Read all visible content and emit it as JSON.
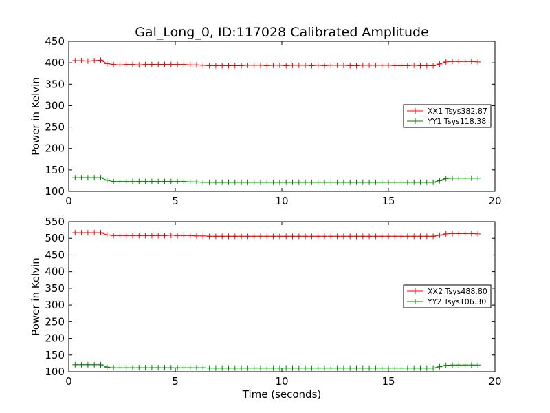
{
  "chart_data": {
    "type": "line",
    "title": "Gal_Long_0, ID:117028 Calibrated Amplitude",
    "xlabel": "Time (seconds)",
    "x": [
      0.3,
      0.6,
      0.9,
      1.2,
      1.5,
      1.8,
      2.1,
      2.4,
      2.7,
      3.0,
      3.3,
      3.6,
      3.9,
      4.2,
      4.5,
      4.8,
      5.1,
      5.4,
      5.7,
      6.0,
      6.3,
      6.6,
      6.9,
      7.2,
      7.5,
      7.8,
      8.1,
      8.4,
      8.7,
      9.0,
      9.3,
      9.6,
      9.9,
      10.2,
      10.5,
      10.8,
      11.1,
      11.4,
      11.7,
      12.0,
      12.3,
      12.6,
      12.9,
      13.2,
      13.5,
      13.8,
      14.1,
      14.4,
      14.7,
      15.0,
      15.3,
      15.6,
      15.9,
      16.2,
      16.5,
      16.8,
      17.1,
      17.4,
      17.7,
      18.0,
      18.3,
      18.6,
      18.9,
      19.2
    ],
    "panels": [
      {
        "ylabel": "Power in Kelvin",
        "xlim": [
          0,
          20
        ],
        "ylim": [
          100,
          450
        ],
        "xticks": [
          "0",
          "5",
          "10",
          "15",
          "20"
        ],
        "yticks": [
          "100",
          "150",
          "200",
          "250",
          "300",
          "350",
          "400",
          "450"
        ],
        "legend_position": "center-right",
        "series": [
          {
            "name": "XX1 Tsys382.87",
            "color": "#ff0000",
            "values": [
              405,
              405,
              404,
              405,
              406,
              398,
              396,
              395,
              396,
              396,
              395,
              396,
              396,
              396,
              396,
              396,
              396,
              396,
              395,
              395,
              394,
              393,
              393,
              393,
              393,
              393,
              393,
              394,
              394,
              394,
              393,
              394,
              394,
              393,
              394,
              394,
              394,
              393,
              394,
              393,
              394,
              394,
              394,
              393,
              393,
              394,
              394,
              394,
              394,
              394,
              393,
              393,
              393,
              394,
              393,
              393,
              393,
              397,
              402,
              403,
              403,
              403,
              403,
              402
            ]
          },
          {
            "name": "YY1 Tsys118.38",
            "color": "#008000",
            "values": [
              132,
              132,
              132,
              132,
              132,
              126,
              123,
              123,
              123,
              123,
              123,
              123,
              123,
              123,
              123,
              123,
              123,
              123,
              122,
              122,
              121,
              121,
              121,
              121,
              121,
              121,
              121,
              121,
              121,
              121,
              121,
              121,
              121,
              121,
              121,
              121,
              121,
              121,
              121,
              121,
              121,
              121,
              121,
              121,
              121,
              121,
              121,
              121,
              121,
              121,
              121,
              121,
              121,
              121,
              121,
              121,
              121,
              125,
              130,
              131,
              131,
              131,
              131,
              131
            ]
          }
        ]
      },
      {
        "ylabel": "Power in Kelvin",
        "xlim": [
          0,
          20
        ],
        "ylim": [
          100,
          550
        ],
        "xticks": [
          "0",
          "5",
          "10",
          "15",
          "20"
        ],
        "yticks": [
          "100",
          "150",
          "200",
          "250",
          "300",
          "350",
          "400",
          "450",
          "500",
          "550"
        ],
        "legend_position": "center-right",
        "series": [
          {
            "name": "XX2 Tsys488.80",
            "color": "#ff0000",
            "values": [
              517,
              517,
              517,
              517,
              517,
              510,
              508,
              508,
              508,
              508,
              508,
              508,
              508,
              508,
              508,
              509,
              508,
              508,
              508,
              507,
              507,
              506,
              506,
              506,
              506,
              506,
              506,
              506,
              506,
              506,
              506,
              506,
              506,
              506,
              506,
              506,
              506,
              506,
              506,
              506,
              506,
              506,
              506,
              506,
              506,
              506,
              506,
              506,
              506,
              506,
              506,
              506,
              506,
              506,
              506,
              506,
              506,
              509,
              513,
              514,
              514,
              514,
              514,
              513
            ]
          },
          {
            "name": "YY2 Tsys106.30",
            "color": "#008000",
            "values": [
              121,
              121,
              121,
              121,
              121,
              114,
              112,
              112,
              112,
              112,
              112,
              112,
              112,
              112,
              112,
              112,
              112,
              112,
              112,
              112,
              112,
              111,
              111,
              111,
              111,
              111,
              111,
              111,
              111,
              111,
              111,
              111,
              111,
              111,
              111,
              111,
              111,
              111,
              111,
              111,
              111,
              111,
              111,
              111,
              111,
              111,
              111,
              111,
              111,
              111,
              111,
              111,
              111,
              111,
              111,
              111,
              111,
              115,
              119,
              120,
              120,
              120,
              120,
              120
            ]
          }
        ]
      }
    ]
  }
}
